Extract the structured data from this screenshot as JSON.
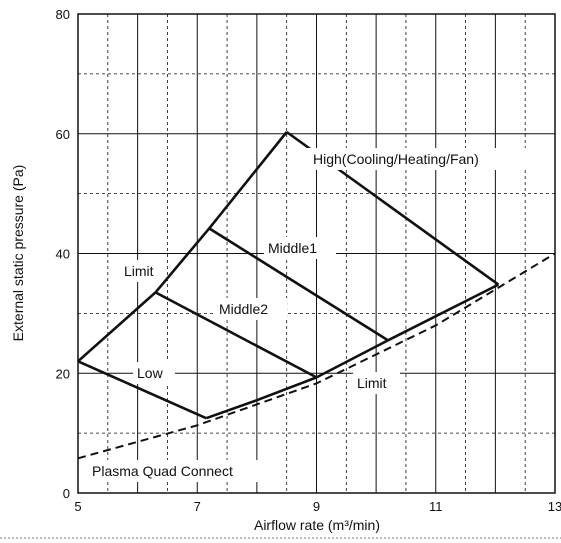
{
  "chart_data": {
    "type": "line",
    "title": "",
    "xlabel": "Airflow rate (m³/min)",
    "ylabel": "External static pressure (Pa)",
    "xlim": [
      5,
      13
    ],
    "ylim": [
      0,
      80
    ],
    "x_ticks": [
      "5",
      "7",
      "9",
      "11",
      "13"
    ],
    "y_ticks": [
      "0",
      "20",
      "40",
      "60",
      "80"
    ],
    "grid": {
      "major": "solid",
      "minor": "dashed",
      "x_minor_step": 0.5,
      "y_minor_step": 10
    },
    "series": [
      {
        "name": "High(Cooling/Heating/Fan)",
        "style": "solid",
        "points": [
          [
            8.5,
            60.3
          ],
          [
            12.05,
            34.8
          ]
        ]
      },
      {
        "name": "Middle1",
        "style": "solid",
        "points": [
          [
            7.2,
            44.2
          ],
          [
            10.2,
            25.5
          ]
        ]
      },
      {
        "name": "Middle2",
        "style": "solid",
        "points": [
          [
            6.3,
            33.5
          ],
          [
            9.0,
            19.3
          ]
        ]
      },
      {
        "name": "Low",
        "style": "solid",
        "points": [
          [
            5.0,
            22.0
          ],
          [
            7.15,
            12.5
          ]
        ]
      },
      {
        "name": "Limit",
        "style": "solid",
        "points": [
          [
            5.0,
            22.0
          ],
          [
            6.3,
            33.5
          ],
          [
            7.2,
            44.2
          ],
          [
            8.5,
            60.3
          ]
        ]
      },
      {
        "name": "Limit",
        "style": "solid",
        "points": [
          [
            7.15,
            12.5
          ],
          [
            8.0,
            15.5
          ],
          [
            9.0,
            19.3
          ],
          [
            10.2,
            25.5
          ],
          [
            12.05,
            34.8
          ]
        ]
      },
      {
        "name": "Plasma Quad Connect",
        "style": "dashed",
        "points": [
          [
            5.0,
            5.8
          ],
          [
            7.0,
            11.3
          ],
          [
            9.0,
            18.3
          ],
          [
            11.0,
            28.0
          ],
          [
            13.0,
            40.0
          ]
        ]
      }
    ],
    "annotations": [
      "High(Cooling/Heating/Fan)",
      "Middle1",
      "Middle2",
      "Low",
      "Limit",
      "Limit",
      "Plasma Quad Connect"
    ]
  }
}
